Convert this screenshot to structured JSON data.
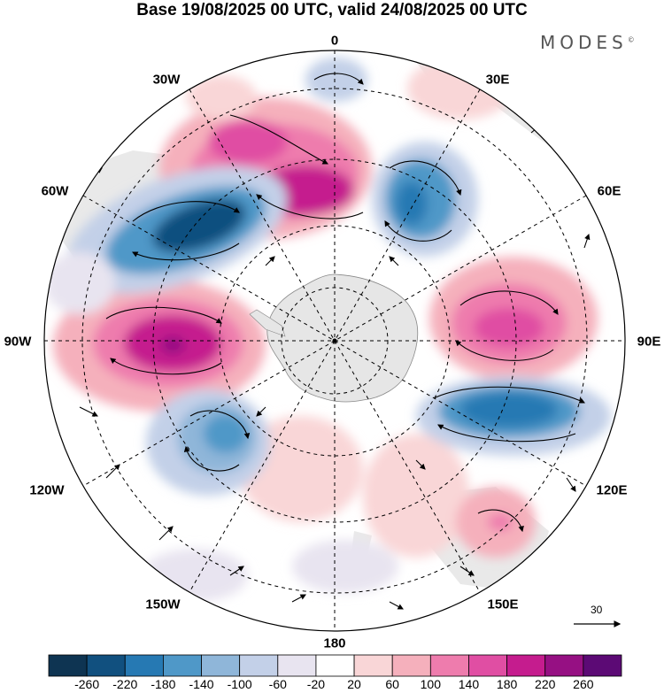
{
  "title": "Base 19/08/2025 00 UTC, valid 24/08/2025 00 UTC",
  "brand": "MODES",
  "brand_mark": "©",
  "longitude_labels": {
    "lon_0": "0",
    "lon_30e": "30E",
    "lon_60e": "60E",
    "lon_90e": "90E",
    "lon_120e": "120E",
    "lon_150e": "150E",
    "lon_180": "180",
    "lon_150w": "150W",
    "lon_120w": "120W",
    "lon_90w": "90W",
    "lon_60w": "60W",
    "lon_30w": "30W"
  },
  "vector_scale": {
    "label": "30"
  },
  "colorbar": {
    "ticks": [
      "-260",
      "-220",
      "-180",
      "-140",
      "-100",
      "-60",
      "-20",
      "20",
      "60",
      "100",
      "140",
      "180",
      "220",
      "260"
    ],
    "colors": [
      "#0e3452",
      "#11507f",
      "#2679b3",
      "#4f98c8",
      "#8fb6d9",
      "#c3d0e8",
      "#e8e4f0",
      "#ffffff",
      "#f9d6d7",
      "#f5b0bc",
      "#ee7cad",
      "#e04ea3",
      "#c51c8e",
      "#961083",
      "#5c0a75"
    ]
  },
  "map_colors": {
    "land": "#dcdcdc",
    "antarctica": "#e6e6e6",
    "graticule": "#000000"
  }
}
